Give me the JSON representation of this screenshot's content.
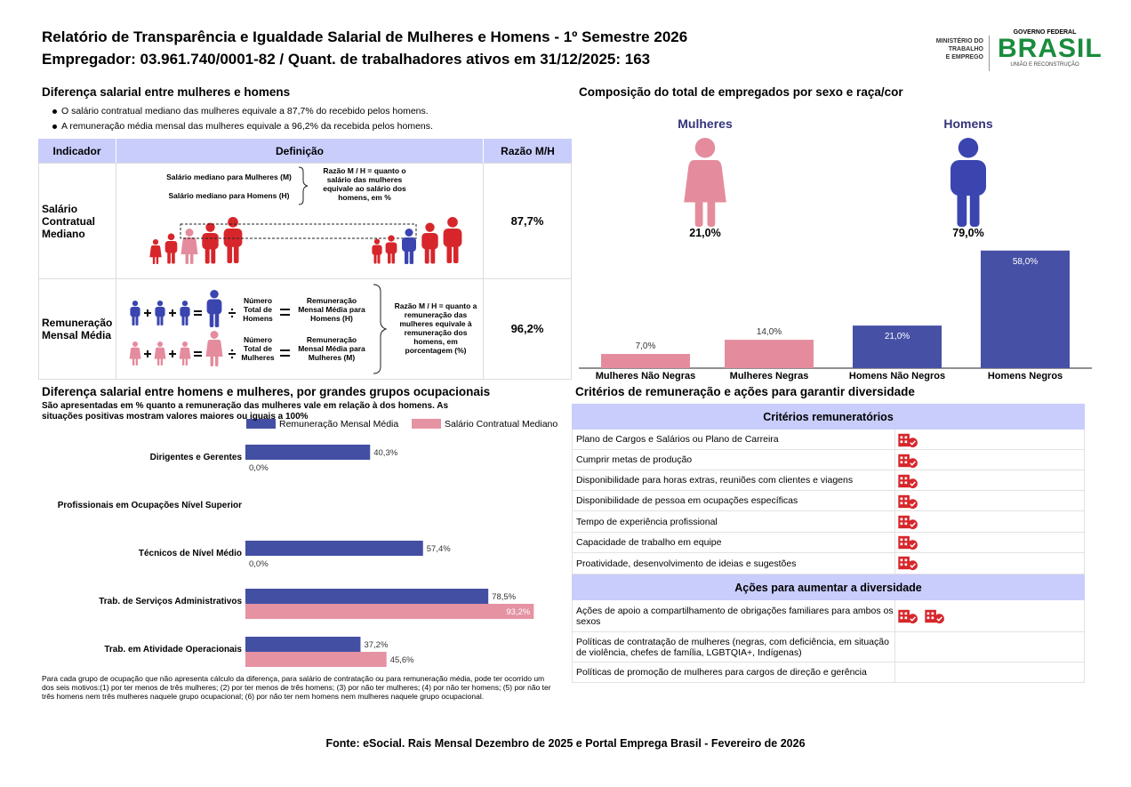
{
  "header": {
    "title": "Relatório de Transparência e Igualdade Salarial de Mulheres e Homens - 1º Semestre 2026",
    "subtitle": "Empregador: 03.961.740/0001-82 / Quant. de trabalhadores ativos em 31/12/2025: 163",
    "ministry": [
      "MINISTÉRIO DO",
      "TRABALHO",
      "E EMPREGO"
    ],
    "gov": "GOVERNO FEDERAL",
    "brand": "BRASIL",
    "tagline": "UNIÃO E RECONSTRUÇÃO"
  },
  "wage_gap": {
    "title": "Diferença salarial entre mulheres e homens",
    "bullets": [
      "O salário contratual mediano das mulheres equivale a 87,7% do recebido pelos homens.",
      "A remuneração média mensal das mulheres equivale a 96,2% da recebida pelos homens."
    ],
    "table": {
      "columns": [
        "Indicador",
        "Definição",
        "Razão M/H"
      ],
      "rows": [
        {
          "indicator": "Salário Contratual Mediano",
          "definition": {
            "women": "Salário mediano para Mulheres (M)",
            "men": "Salário mediano para Homens (H)",
            "ratio_note": "Razão M / H = quanto o salário das mulheres equivale ao salário dos homens, em %"
          },
          "ratio": "87,7%"
        },
        {
          "indicator": "Remuneração Mensal Média",
          "definition": {
            "men_count": "Número Total de Homens",
            "men_pay": "Remuneração Mensal Média para Homens (H)",
            "women_count": "Número Total de Mulheres",
            "women_pay": "Remuneração Mensal Média para Mulheres (M)",
            "ratio_note": "Razão M / H = quanto a remuneração das mulheres equivale à remuneração dos homens, em porcentagem (%)"
          },
          "ratio": "96,2%"
        }
      ]
    }
  },
  "composition": {
    "title": "Composição do total de empregados por sexo e raça/cor",
    "women": {
      "label": "Mulheres",
      "share": "21,0%"
    },
    "men": {
      "label": "Homens",
      "share": "79,0%"
    },
    "chart_data": {
      "type": "bar",
      "categories": [
        "Mulheres Não Negras",
        "Mulheres Negras",
        "Homens Não Negros",
        "Homens Negros"
      ],
      "values": [
        7.0,
        14.0,
        21.0,
        58.0
      ],
      "value_labels": [
        "7,0%",
        "14,0%",
        "21,0%",
        "58,0%"
      ],
      "colors": [
        "#e48c9d",
        "#e48c9d",
        "#4650a5",
        "#4650a5"
      ]
    }
  },
  "occupations": {
    "title": "Diferença salarial entre homens e mulheres, por grandes grupos ocupacionais",
    "description": "São apresentadas em % quanto a remuneração das mulheres vale em relação à dos homens. As situações positivas mostram valores maiores ou iguais a 100%",
    "chart_data": {
      "type": "hbar",
      "categories": [
        "Dirigentes e Gerentes",
        "Profissionais em Ocupações Nível Superior",
        "Técnicos de Nível Médio",
        "Trab. de Serviços Administrativos",
        "Trab. em Atividade Operacionais"
      ],
      "series": [
        {
          "name": "Remuneração Mensal Média",
          "color": "#434fa3",
          "values": [
            40.3,
            null,
            57.4,
            78.5,
            37.2
          ],
          "value_labels": [
            "40,3%",
            null,
            "57,4%",
            "78,5%",
            "37,2%"
          ]
        },
        {
          "name": "Salário Contratual Mediano",
          "color": "#e593a2",
          "values": [
            0.0,
            null,
            0.0,
            93.2,
            45.6
          ],
          "value_labels": [
            "0,0%",
            null,
            "0,0%",
            "93,2%",
            "45,6%"
          ]
        }
      ],
      "xlim": [
        0,
        100
      ]
    },
    "footnote": "Para cada grupo de ocupação que não apresenta cálculo da diferença, para salário de contratação ou para remuneração média, pode ter ocorrido um dos seis motivos:(1) por ter menos de três mulheres; (2) por ter menos de três homens; (3) por não ter mulheres; (4) por não ter homens; (5) por não ter três homens nem três mulheres naquele grupo ocupacional; (6) por não ter nem homens nem mulheres naquele grupo ocupacional."
  },
  "criteria": {
    "title": "Critérios de remuneração e ações para garantir diversidade",
    "sections": [
      {
        "heading": "Critérios remuneratórios",
        "items": [
          "Plano de Cargos e Salários ou Plano de Carreira",
          "Cumprir metas de produção",
          "Disponibilidade para horas extras, reuniões com clientes e viagens",
          "Disponibilidade de pessoa em ocupações específicas",
          "Tempo de experiência profissional",
          "Capacidade de trabalho em equipe",
          "Proatividade, desenvolvimento de ideias e sugestões"
        ]
      },
      {
        "heading": "Ações para aumentar a diversidade",
        "items": [
          "Ações de apoio a compartilhamento de obrigações familiares para ambos os sexos",
          "Políticas de contratação de mulheres (negras, com deficiência, em situação de violência, chefes de família, LGBTQIA+, Indígenas)",
          "Políticas de promoção de mulheres para cargos de direção e gerência"
        ]
      }
    ]
  },
  "source": "Fonte: eSocial. Rais Mensal Dezembro de 2025 e Portal Emprega Brasil - Fevereiro de 2026"
}
